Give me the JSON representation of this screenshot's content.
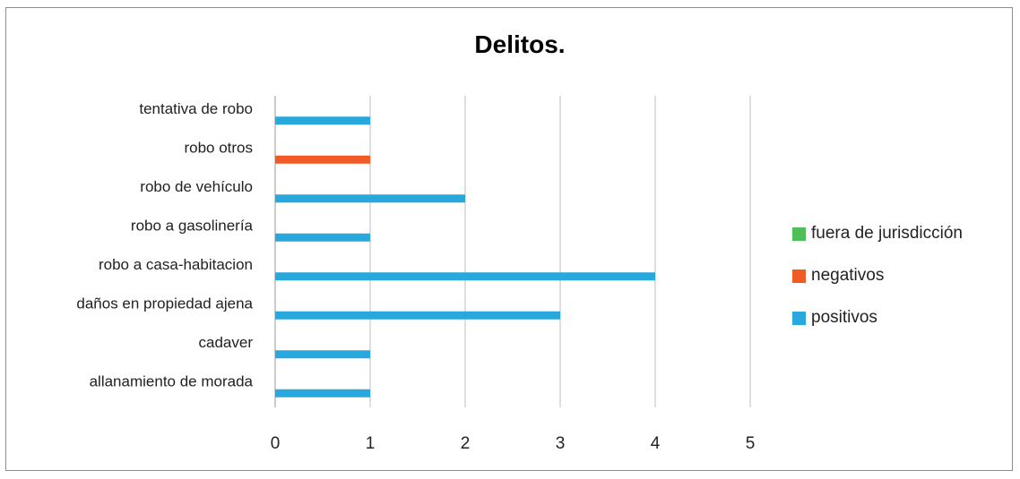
{
  "chart_data": {
    "type": "bar",
    "orientation": "horizontal",
    "title": "Delitos.",
    "xlabel": "",
    "ylabel": "",
    "categories": [
      "allanamiento de morada",
      "cadaver",
      "daños en propiedad ajena",
      "robo a casa-habitacion",
      "robo a gasolinería",
      "robo de vehículo",
      "robo otros",
      "tentativa de robo"
    ],
    "series": [
      {
        "name": "positivos",
        "color": "#29a8dd",
        "values": [
          1,
          1,
          3,
          4,
          1,
          2,
          0,
          1
        ]
      },
      {
        "name": "negativos",
        "color": "#f15a24",
        "values": [
          0,
          0,
          0,
          0,
          0,
          0,
          1,
          0
        ]
      },
      {
        "name": "fuera de jurisdicción",
        "color": "#4fbf5a",
        "values": [
          0,
          0,
          0,
          0,
          0,
          0,
          0,
          0
        ]
      }
    ],
    "xlim": [
      0,
      5
    ],
    "xticks": [
      "0",
      "1",
      "2",
      "3",
      "4",
      "5"
    ],
    "grid": "vertical",
    "legend": "right",
    "legend_order": [
      "fuera de jurisdicción",
      "negativos",
      "positivos"
    ]
  }
}
